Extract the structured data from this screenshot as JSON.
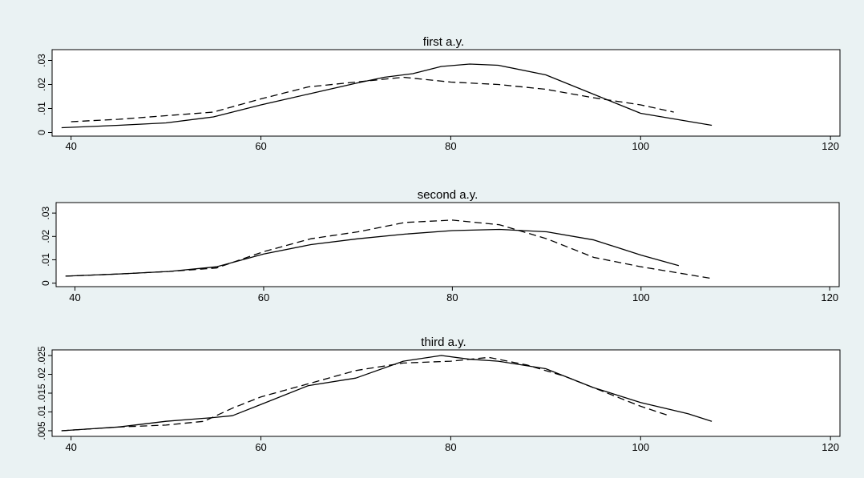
{
  "colors": {
    "background": "#eaf2f3",
    "plot_area": "#ffffff",
    "line": "#000000"
  },
  "chart_data": [
    {
      "type": "line",
      "title": "first a.y.",
      "xlabel": "",
      "ylabel": "",
      "xlim": [
        38,
        121
      ],
      "ylim": [
        -0.0015,
        0.0345
      ],
      "xticks": [
        "40",
        "60",
        "80",
        "100",
        "120"
      ],
      "yticks": [
        "0",
        ".01",
        ".02",
        ".03"
      ],
      "ytick_values": [
        0,
        0.01,
        0.02,
        0.03
      ],
      "grid": false,
      "series": [
        {
          "style": "solid",
          "x": [
            39,
            45,
            50,
            55,
            56,
            60,
            65,
            70,
            73,
            76,
            79,
            82,
            85,
            90,
            95,
            100,
            103,
            107.5
          ],
          "y": [
            0.002,
            0.003,
            0.004,
            0.0065,
            0.0075,
            0.0115,
            0.016,
            0.0205,
            0.023,
            0.0245,
            0.0275,
            0.0285,
            0.028,
            0.024,
            0.016,
            0.008,
            0.006,
            0.003
          ]
        },
        {
          "style": "dashed",
          "x": [
            40,
            45,
            50,
            55,
            60,
            65,
            70,
            75,
            80,
            85,
            90,
            95,
            100,
            103.5
          ],
          "y": [
            0.0045,
            0.0055,
            0.007,
            0.0085,
            0.014,
            0.019,
            0.021,
            0.023,
            0.021,
            0.02,
            0.018,
            0.0145,
            0.0115,
            0.0085
          ]
        }
      ]
    },
    {
      "type": "line",
      "title": "second a.y.",
      "xlabel": "",
      "ylabel": "",
      "xlim": [
        38,
        121
      ],
      "ylim": [
        -0.0015,
        0.0345
      ],
      "xticks": [
        "40",
        "60",
        "80",
        "100",
        "120"
      ],
      "yticks": [
        "0",
        ".01",
        ".02",
        ".03"
      ],
      "ytick_values": [
        0,
        0.01,
        0.02,
        0.03
      ],
      "grid": false,
      "series": [
        {
          "style": "solid",
          "x": [
            39,
            45,
            50,
            55,
            60,
            65,
            70,
            75,
            80,
            85,
            90,
            95,
            100,
            104
          ],
          "y": [
            0.003,
            0.004,
            0.005,
            0.007,
            0.0125,
            0.0165,
            0.019,
            0.021,
            0.0225,
            0.023,
            0.022,
            0.0185,
            0.012,
            0.0075
          ]
        },
        {
          "style": "dashed",
          "x": [
            39,
            45,
            50,
            55,
            60,
            65,
            70,
            75,
            80,
            85,
            90,
            95,
            100,
            107.5
          ],
          "y": [
            0.003,
            0.004,
            0.005,
            0.0065,
            0.0135,
            0.019,
            0.022,
            0.026,
            0.027,
            0.025,
            0.019,
            0.011,
            0.007,
            0.002
          ]
        }
      ]
    },
    {
      "type": "line",
      "title": "third a.y.",
      "xlabel": "",
      "ylabel": "",
      "xlim": [
        38,
        121
      ],
      "ylim": [
        0.0035,
        0.0265
      ],
      "xticks": [
        "40",
        "60",
        "80",
        "100",
        "120"
      ],
      "yticks": [
        ".005",
        ".01",
        ".015",
        ".02",
        ".025"
      ],
      "ytick_values": [
        0.005,
        0.01,
        0.015,
        0.02,
        0.025
      ],
      "grid": false,
      "series": [
        {
          "style": "solid",
          "x": [
            39,
            45,
            50,
            55,
            57,
            60,
            65,
            70,
            75,
            79,
            82,
            85,
            90,
            95,
            100,
            105,
            107.5
          ],
          "y": [
            0.005,
            0.006,
            0.0075,
            0.0085,
            0.009,
            0.012,
            0.017,
            0.019,
            0.0235,
            0.025,
            0.024,
            0.0235,
            0.0215,
            0.0165,
            0.0125,
            0.0095,
            0.0075
          ]
        },
        {
          "style": "dashed",
          "x": [
            39,
            45,
            50,
            54,
            57,
            60,
            65,
            70,
            75,
            80,
            84,
            88,
            92,
            96,
            100,
            103
          ],
          "y": [
            0.005,
            0.006,
            0.0065,
            0.0075,
            0.011,
            0.014,
            0.0175,
            0.021,
            0.023,
            0.0235,
            0.0245,
            0.0225,
            0.0195,
            0.0155,
            0.0115,
            0.009
          ]
        }
      ]
    }
  ]
}
